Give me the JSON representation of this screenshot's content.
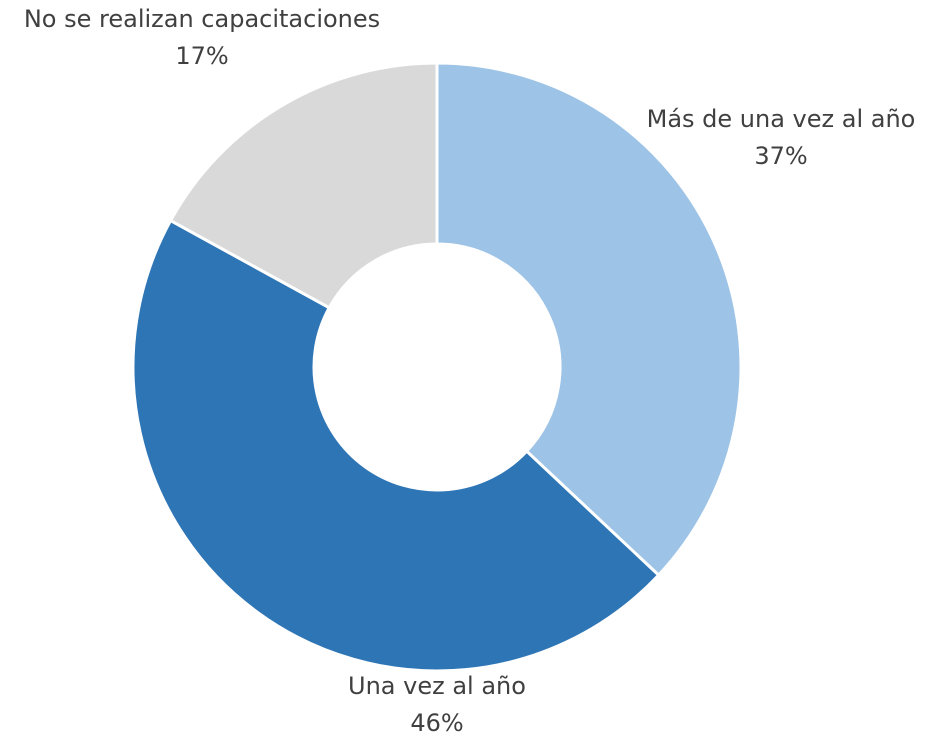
{
  "chart_data": {
    "type": "donut",
    "categories": [
      "Más de una vez al año",
      "Una vez al año",
      "No se realizan capacitaciones"
    ],
    "values": [
      37,
      46,
      17
    ],
    "value_labels": [
      "37%",
      "46%",
      "17%"
    ],
    "colors": [
      "#9dc3e6",
      "#2e75b6",
      "#d9d9d9"
    ]
  }
}
